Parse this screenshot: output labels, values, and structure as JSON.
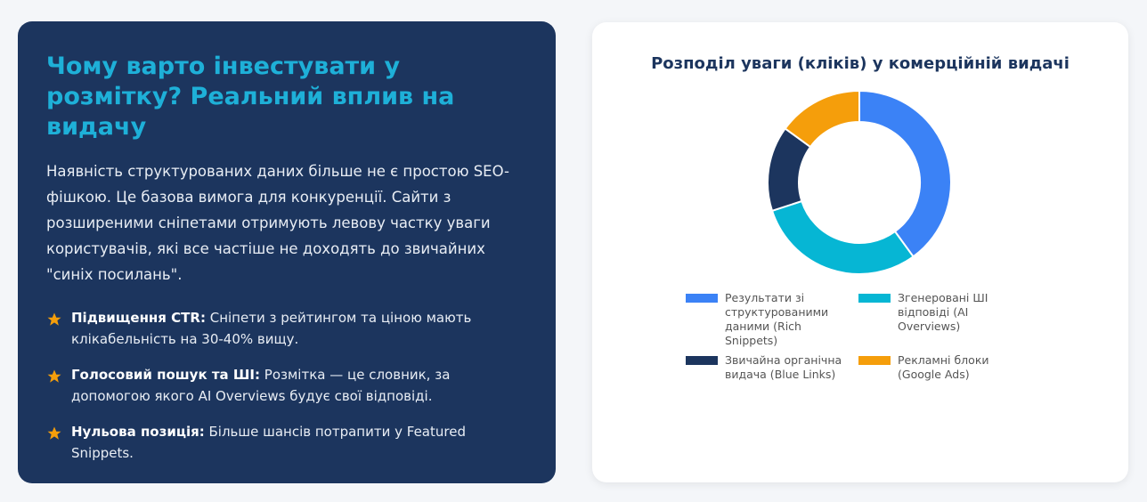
{
  "panel": {
    "title": "Чому варто інвестувати у розмітку? Реальний вплив на видачу",
    "text": "Наявність структурованих даних більше не є простою SEO-фішкою. Це базова вимога для конкуренції. Сайти з розширеними сніпетами отримують левову частку уваги користувачів, які все частіше не доходять до звичайних \"синіх посилань\".",
    "bullets": [
      {
        "title": "Підвищення CTR:",
        "text": "Сніпети з рейтингом та ціною мають клікабельність на 30-40% вищу."
      },
      {
        "title": "Голосовий пошук та ШІ:",
        "text": "Розмітка — це словник, за допомогою якого AI Overviews будує свої відповіді."
      },
      {
        "title": "Нульова позиція:",
        "text": "Більше шансів потрапити у Featured Snippets."
      }
    ]
  },
  "chart_data": {
    "type": "doughnut",
    "title": "Розподіл уваги (кліків) у комерційній видачі",
    "categories": [
      "Результати зі структурованими даними (Rich Snippets)",
      "Згенеровані ШІ відповіді (AI Overviews)",
      "Звичайна органічна видача (Blue Links)",
      "Рекламні блоки (Google Ads)"
    ],
    "values": [
      40,
      30,
      15,
      15
    ],
    "colors": [
      "#3b82f6",
      "#06b6d4",
      "#1c355e",
      "#f59e0b"
    ]
  }
}
